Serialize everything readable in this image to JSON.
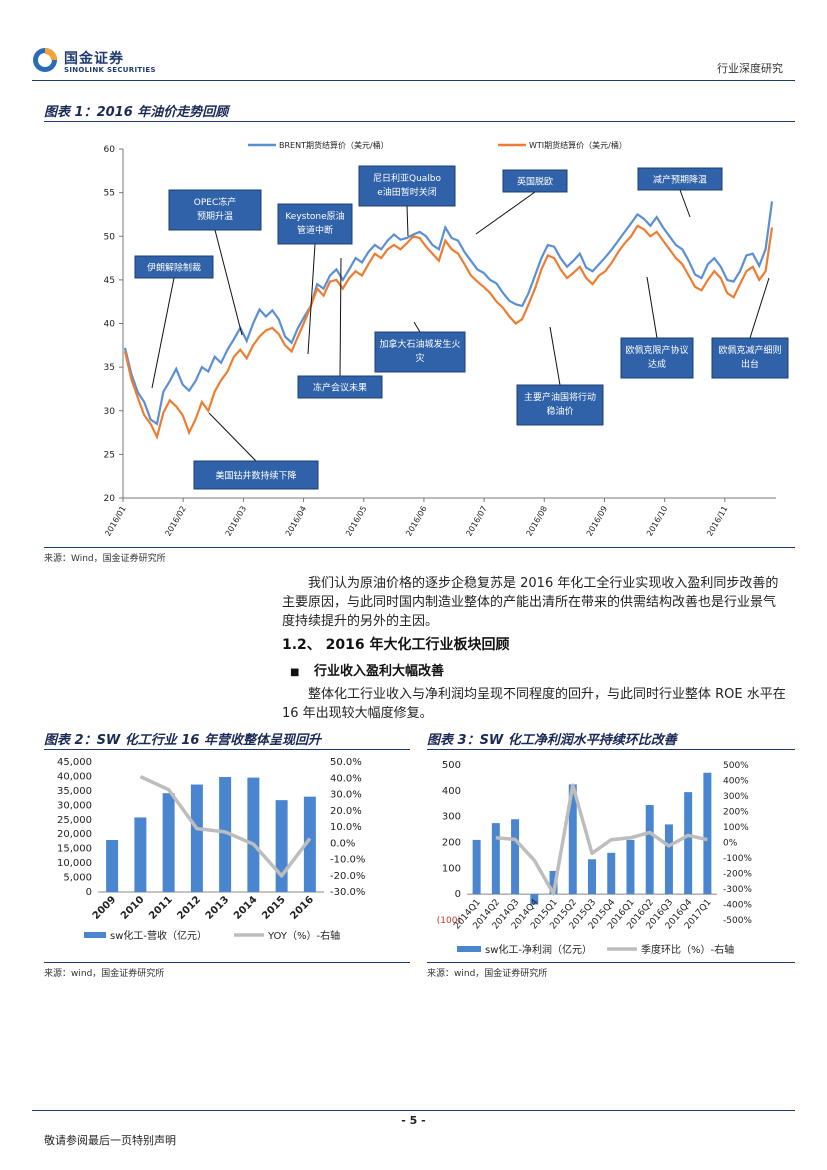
{
  "header": {
    "logo_cn": "国金证券",
    "logo_en": "SINOLINK SECURITIES",
    "report_type": "行业深度研究"
  },
  "figure1": {
    "title": "图表 1：2016 年油价走势回顾",
    "source": "来源：Wind，国金证券研究所",
    "annotations": [
      "伊朗解除制裁",
      "OPEC冻产预期升温",
      "Keystone原油管道中断",
      "尼日利亚Qualboe油田暂时关闭",
      "英国脱欧",
      "减产预期降温",
      "加拿大石油城发生火灾",
      "冻产会议未果",
      "美国钻井数持续下降",
      "主要产油国将行动稳油价",
      "欧佩克限产协议达成",
      "欧佩克减产细则出台"
    ]
  },
  "para1": "我们认为原油价格的逐步企稳复苏是 2016 年化工全行业实现收入盈利同步改善的主要原因，与此同时国内制造业整体的产能出清所在带来的供需结构改善也是行业景气度持续提升的另外的主因。",
  "section": {
    "heading": "1.2、 2016 年大化工行业板块回顾",
    "subheading": "行业收入盈利大幅改善",
    "bullet": "■",
    "para": "整体化工行业收入与净利润均呈现不同程度的回升，与此同时行业整体 ROE 水平在 16 年出现较大幅度修复。"
  },
  "figure2": {
    "title": "图表 2：SW 化工行业 16 年营收整体呈现回升",
    "source": "来源：wind，国金证券研究所"
  },
  "figure3": {
    "title": "图表 3：SW 化工净利润水平持续环比改善",
    "source": "来源：wind，国金证券研究所",
    "neg_label": "(100)"
  },
  "footer": {
    "page": "- 5 -",
    "disclaimer": "敬请参阅最后一页特别声明"
  },
  "chart_data": [
    {
      "type": "line",
      "x_ticks": [
        "2016/01",
        "2016/02",
        "2016/03",
        "2016/04",
        "2016/05",
        "2016/06",
        "2016/07",
        "2016/08",
        "2016/09",
        "2016/10",
        "2016/11"
      ],
      "ylim": [
        20,
        60
      ],
      "y_ticks": [
        20,
        25,
        30,
        35,
        40,
        45,
        50,
        55,
        60
      ],
      "legend_position": "top",
      "series": [
        {
          "name": "BRENT期货结算价（美元/桶）",
          "color": "#5b8fd4",
          "values": [
            37.2,
            34.2,
            32.1,
            31.0,
            29.0,
            28.5,
            32.2,
            33.4,
            34.8,
            33.0,
            32.3,
            33.4,
            35.0,
            34.5,
            36.2,
            35.5,
            37.0,
            38.2,
            39.5,
            38.0,
            40.0,
            41.6,
            40.8,
            41.5,
            40.5,
            38.5,
            37.8,
            39.5,
            40.8,
            42.0,
            44.5,
            44.0,
            45.5,
            46.2,
            45.0,
            46.2,
            47.5,
            47.0,
            48.2,
            49.0,
            48.5,
            49.5,
            50.2,
            49.6,
            49.8,
            50.2,
            50.5,
            50.0,
            49.0,
            48.5,
            51.0,
            49.8,
            49.5,
            48.2,
            47.2,
            46.2,
            45.8,
            45.0,
            44.6,
            43.5,
            42.6,
            42.2,
            42.0,
            43.5,
            45.5,
            47.5,
            49.0,
            48.8,
            47.5,
            46.5,
            47.2,
            48.0,
            46.4,
            46.0,
            46.8,
            47.6,
            48.5,
            49.5,
            50.5,
            51.5,
            52.5,
            52.0,
            51.2,
            52.2,
            51.0,
            50.0,
            49.0,
            48.5,
            47.2,
            45.6,
            45.2,
            46.8,
            47.5,
            46.5,
            45.0,
            44.8,
            46.0,
            47.8,
            48.0,
            46.6,
            48.5,
            54.0
          ]
        },
        {
          "name": "WTI期货结算价（美元/桶）",
          "color": "#ee7d31",
          "values": [
            36.8,
            33.6,
            31.5,
            29.5,
            28.5,
            27.0,
            29.8,
            31.2,
            30.5,
            29.5,
            27.5,
            29.0,
            31.0,
            30.0,
            32.2,
            33.5,
            34.5,
            36.2,
            37.0,
            36.0,
            37.5,
            38.5,
            39.2,
            39.5,
            38.8,
            37.5,
            36.8,
            38.5,
            40.2,
            42.0,
            44.0,
            43.2,
            44.8,
            45.0,
            44.0,
            45.2,
            46.0,
            45.5,
            46.8,
            48.0,
            47.5,
            48.5,
            49.0,
            48.5,
            49.2,
            50.0,
            49.8,
            48.8,
            48.0,
            47.2,
            49.5,
            48.5,
            48.0,
            46.8,
            45.5,
            44.8,
            44.2,
            43.5,
            42.5,
            41.8,
            40.8,
            40.0,
            40.5,
            42.2,
            44.0,
            46.2,
            47.8,
            47.5,
            46.2,
            45.2,
            45.8,
            46.5,
            45.2,
            44.5,
            45.5,
            46.0,
            47.0,
            48.2,
            49.2,
            50.0,
            51.2,
            50.8,
            50.0,
            50.5,
            49.5,
            48.5,
            47.5,
            46.8,
            45.5,
            44.2,
            43.8,
            45.0,
            46.0,
            45.2,
            43.5,
            43.0,
            44.5,
            46.0,
            46.5,
            45.0,
            46.0,
            51.0
          ]
        }
      ]
    },
    {
      "type": "bar",
      "categories": [
        "2009",
        "2010",
        "2011",
        "2012",
        "2013",
        "2014",
        "2015",
        "2016"
      ],
      "ylim": [
        0,
        45000
      ],
      "y_ticks": [
        "0",
        "5,000",
        "10,000",
        "15,000",
        "20,000",
        "25,000",
        "30,000",
        "35,000",
        "40,000",
        "45,000"
      ],
      "y2lim": [
        -30,
        50
      ],
      "y2_ticks": [
        "-30.0%",
        "-20.0%",
        "-10.0%",
        "0.0%",
        "10.0%",
        "20.0%",
        "30.0%",
        "40.0%",
        "50.0%"
      ],
      "series": [
        {
          "name": "sw化工-营收（亿元）",
          "type": "bar",
          "color": "#4a86cf",
          "values": [
            18000,
            25800,
            34200,
            37200,
            39800,
            39600,
            31800,
            33000
          ]
        },
        {
          "name": "YOY（%）-右轴",
          "type": "line",
          "color": "#bdbdbd",
          "values": [
            null,
            41.0,
            33.0,
            9.0,
            7.0,
            -0.5,
            -20.0,
            3.0
          ]
        }
      ]
    },
    {
      "type": "bar",
      "categories": [
        "2014Q1",
        "2014Q2",
        "2014Q3",
        "2014Q4",
        "2015Q1",
        "2015Q2",
        "2015Q3",
        "2015Q4",
        "2016Q1",
        "2016Q2",
        "2016Q3",
        "2016Q4",
        "2017Q1"
      ],
      "ylim": [
        -100,
        500
      ],
      "y_ticks": [
        "0",
        "100",
        "200",
        "300",
        "400",
        "500"
      ],
      "y2lim": [
        -500,
        500
      ],
      "y2_ticks": [
        "-500%",
        "-400%",
        "-300%",
        "-200%",
        "-100%",
        "0%",
        "100%",
        "200%",
        "300%",
        "400%",
        "500%"
      ],
      "series": [
        {
          "name": "sw化工-净利润（亿元）",
          "type": "bar",
          "color": "#4a86cf",
          "values": [
            210,
            275,
            290,
            -40,
            90,
            425,
            135,
            160,
            210,
            345,
            270,
            395,
            470
          ]
        },
        {
          "name": "季度环比（%）-右轴",
          "type": "line",
          "color": "#bdbdbd",
          "values": [
            null,
            30,
            20,
            -115,
            -330,
            370,
            -70,
            18,
            30,
            65,
            -22,
            46,
            18
          ]
        }
      ]
    }
  ]
}
